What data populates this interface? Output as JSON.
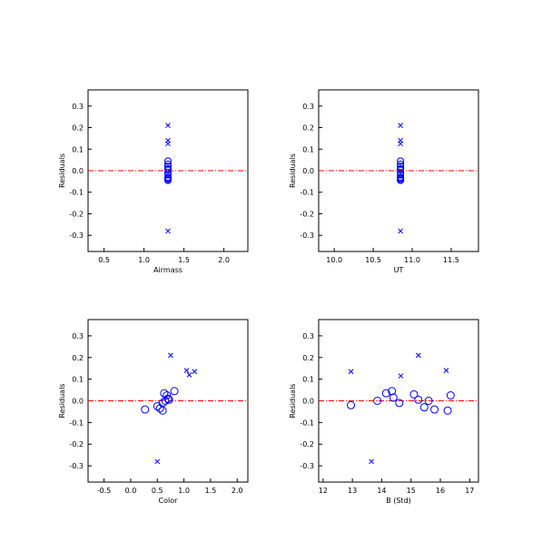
{
  "colors": {
    "marker": "#0000ff",
    "zero_line": "#ff0000",
    "axis": "#000000"
  },
  "chart_data": [
    {
      "type": "scatter",
      "xlabel": "Airmass",
      "ylabel": "Residuals",
      "xlim": [
        0.3,
        2.3
      ],
      "ylim": [
        -0.375,
        0.375
      ],
      "xticks": [
        0.5,
        1.0,
        1.5,
        2.0
      ],
      "xtick_labels": [
        "0.5",
        "1.0",
        "1.5",
        "2.0"
      ],
      "yticks": [
        0.3,
        0.2,
        0.1,
        0.0,
        -0.1,
        -0.2,
        -0.3
      ],
      "ytick_labels": [
        "0.3",
        "0.2",
        "0.1",
        "0.0",
        "-0.1",
        "-0.2",
        "-0.3"
      ],
      "reference_line": {
        "y": 0.0,
        "style": "dash-dot"
      },
      "series": [
        {
          "marker": "cross",
          "points": [
            [
              1.3,
              0.21
            ],
            [
              1.3,
              0.14
            ],
            [
              1.3,
              0.125
            ],
            [
              1.3,
              -0.28
            ]
          ]
        },
        {
          "marker": "circle",
          "points": [
            [
              1.3,
              0.045
            ],
            [
              1.3,
              0.03
            ],
            [
              1.3,
              0.02
            ],
            [
              1.3,
              0.01
            ],
            [
              1.3,
              0.005
            ],
            [
              1.3,
              -0.01
            ],
            [
              1.3,
              -0.02
            ],
            [
              1.3,
              -0.03
            ],
            [
              1.3,
              -0.035
            ],
            [
              1.3,
              -0.04
            ],
            [
              1.3,
              -0.045
            ]
          ]
        }
      ]
    },
    {
      "type": "scatter",
      "xlabel": "UT",
      "ylabel": "Residuals",
      "xlim": [
        9.8,
        11.85
      ],
      "ylim": [
        -0.375,
        0.375
      ],
      "xticks": [
        10.0,
        10.5,
        11.0,
        11.5
      ],
      "xtick_labels": [
        "10.0",
        "10.5",
        "11.0",
        "11.5"
      ],
      "yticks": [
        0.3,
        0.2,
        0.1,
        0.0,
        -0.1,
        -0.2,
        -0.3
      ],
      "ytick_labels": [
        "0.3",
        "0.2",
        "0.1",
        "0.0",
        "-0.1",
        "-0.2",
        "-0.3"
      ],
      "reference_line": {
        "y": 0.0,
        "style": "dash-dot"
      },
      "series": [
        {
          "marker": "cross",
          "points": [
            [
              10.85,
              0.21
            ],
            [
              10.85,
              0.14
            ],
            [
              10.85,
              0.125
            ],
            [
              10.85,
              -0.28
            ]
          ]
        },
        {
          "marker": "circle",
          "points": [
            [
              10.85,
              0.045
            ],
            [
              10.85,
              0.03
            ],
            [
              10.85,
              0.02
            ],
            [
              10.85,
              0.01
            ],
            [
              10.85,
              0.005
            ],
            [
              10.85,
              -0.01
            ],
            [
              10.85,
              -0.02
            ],
            [
              10.85,
              -0.03
            ],
            [
              10.85,
              -0.035
            ],
            [
              10.85,
              -0.04
            ],
            [
              10.85,
              -0.045
            ]
          ]
        }
      ]
    },
    {
      "type": "scatter",
      "xlabel": "Color",
      "ylabel": "Residuals",
      "xlim": [
        -0.8,
        2.2
      ],
      "ylim": [
        -0.375,
        0.375
      ],
      "xticks": [
        -0.5,
        0.0,
        0.5,
        1.0,
        1.5,
        2.0
      ],
      "xtick_labels": [
        "-0.5",
        "0.0",
        "0.5",
        "1.0",
        "1.5",
        "2.0"
      ],
      "yticks": [
        0.3,
        0.2,
        0.1,
        0.0,
        -0.1,
        -0.2,
        -0.3
      ],
      "ytick_labels": [
        "0.3",
        "0.2",
        "0.1",
        "0.0",
        "-0.1",
        "-0.2",
        "-0.3"
      ],
      "reference_line": {
        "y": 0.0,
        "style": "dash-dot"
      },
      "series": [
        {
          "marker": "cross",
          "points": [
            [
              0.75,
              0.21
            ],
            [
              1.05,
              0.14
            ],
            [
              1.2,
              0.135
            ],
            [
              1.1,
              0.12
            ],
            [
              0.5,
              -0.28
            ]
          ]
        },
        {
          "marker": "circle",
          "points": [
            [
              0.27,
              -0.04
            ],
            [
              0.5,
              -0.025
            ],
            [
              0.55,
              -0.035
            ],
            [
              0.6,
              -0.045
            ],
            [
              0.6,
              -0.01
            ],
            [
              0.63,
              0.035
            ],
            [
              0.65,
              0.0
            ],
            [
              0.68,
              0.025
            ],
            [
              0.7,
              0.01
            ],
            [
              0.72,
              0.005
            ],
            [
              0.82,
              0.045
            ]
          ]
        }
      ]
    },
    {
      "type": "scatter",
      "xlabel": "B (Std)",
      "ylabel": "Residuals",
      "xlim": [
        11.85,
        17.3
      ],
      "ylim": [
        -0.375,
        0.375
      ],
      "xticks": [
        12,
        13,
        14,
        15,
        16,
        17
      ],
      "xtick_labels": [
        "12",
        "13",
        "14",
        "15",
        "16",
        "17"
      ],
      "yticks": [
        0.3,
        0.2,
        0.1,
        0.0,
        -0.1,
        -0.2,
        -0.3
      ],
      "ytick_labels": [
        "0.3",
        "0.2",
        "0.1",
        "0.0",
        "-0.1",
        "-0.2",
        "-0.3"
      ],
      "reference_line": {
        "y": 0.0,
        "style": "dash-dot"
      },
      "series": [
        {
          "marker": "cross",
          "points": [
            [
              12.95,
              0.135
            ],
            [
              13.65,
              -0.28
            ],
            [
              14.65,
              0.115
            ],
            [
              15.25,
              0.21
            ],
            [
              16.2,
              0.14
            ]
          ]
        },
        {
          "marker": "circle",
          "points": [
            [
              12.95,
              -0.02
            ],
            [
              13.85,
              0.0
            ],
            [
              14.15,
              0.035
            ],
            [
              14.35,
              0.045
            ],
            [
              14.4,
              0.015
            ],
            [
              14.6,
              -0.01
            ],
            [
              15.1,
              0.03
            ],
            [
              15.25,
              0.005
            ],
            [
              15.45,
              -0.03
            ],
            [
              15.6,
              0.0
            ],
            [
              15.8,
              -0.04
            ],
            [
              16.25,
              -0.045
            ],
            [
              16.35,
              0.025
            ]
          ]
        }
      ]
    }
  ]
}
